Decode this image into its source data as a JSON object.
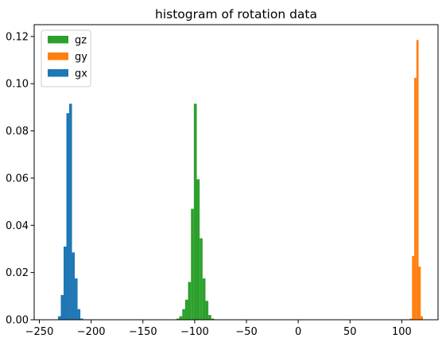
{
  "chart_data": {
    "type": "bar",
    "title": "histogram of rotation data",
    "xlabel": "",
    "ylabel": "",
    "xlim": [
      -255,
      135
    ],
    "ylim": [
      0,
      0.125
    ],
    "xticks": [
      -250,
      -200,
      -150,
      -100,
      -50,
      0,
      50,
      100
    ],
    "xtick_labels": [
      "−250",
      "−200",
      "−150",
      "−100",
      "−50",
      "0",
      "50",
      "100"
    ],
    "yticks": [
      0,
      0.02,
      0.04,
      0.06,
      0.08,
      0.1,
      0.12
    ],
    "ytick_labels": [
      "0.00",
      "0.02",
      "0.04",
      "0.06",
      "0.08",
      "0.10",
      "0.12"
    ],
    "grid": false,
    "legend": {
      "position": "upper-left",
      "order": [
        "gz",
        "gy",
        "gx"
      ]
    },
    "series": [
      {
        "name": "gx",
        "color": "#1f77b4",
        "bin_width": 2.7,
        "bins": [
          [
            -232.0,
            0.0015
          ],
          [
            -229.3,
            0.0105
          ],
          [
            -226.6,
            0.031
          ],
          [
            -223.9,
            0.0875
          ],
          [
            -221.2,
            0.0915
          ],
          [
            -218.5,
            0.0285
          ],
          [
            -215.8,
            0.0175
          ],
          [
            -213.1,
            0.0045
          ],
          [
            -210.4,
            0.0005
          ]
        ]
      },
      {
        "name": "gz",
        "color": "#2ca02c",
        "bin_width": 2.8,
        "bins": [
          [
            -117.6,
            0.0005
          ],
          [
            -114.8,
            0.0015
          ],
          [
            -112.0,
            0.0045
          ],
          [
            -109.2,
            0.0085
          ],
          [
            -106.4,
            0.016
          ],
          [
            -103.6,
            0.047
          ],
          [
            -100.8,
            0.0915
          ],
          [
            -98.0,
            0.0595
          ],
          [
            -95.2,
            0.0345
          ],
          [
            -92.4,
            0.0175
          ],
          [
            -89.6,
            0.008
          ],
          [
            -86.8,
            0.002
          ],
          [
            -84.0,
            0.0005
          ]
        ]
      },
      {
        "name": "gy",
        "color": "#ff7f0e",
        "bin_width": 2.1,
        "bins": [
          [
            107.8,
            0.0005
          ],
          [
            109.9,
            0.027
          ],
          [
            112.0,
            0.1025
          ],
          [
            114.1,
            0.1185
          ],
          [
            116.2,
            0.0225
          ],
          [
            118.3,
            0.0015
          ]
        ]
      }
    ]
  }
}
